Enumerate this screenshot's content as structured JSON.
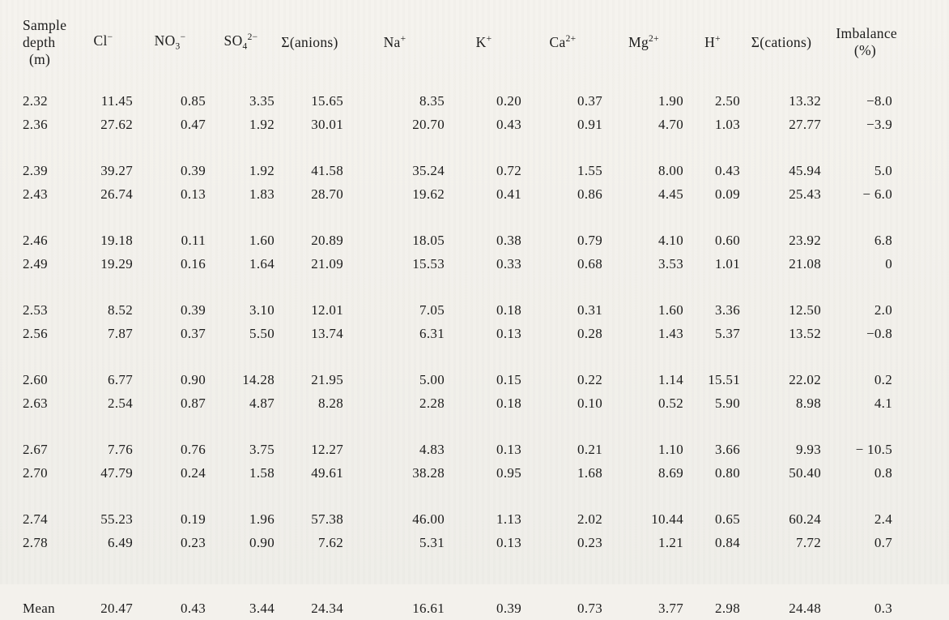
{
  "colors": {
    "paper": "#f3f1ec",
    "ink": "#1c1c1c"
  },
  "table": {
    "columns": [
      {
        "id": "sample-depth",
        "label_lines": [
          "Sample",
          "depth",
          "(m)"
        ]
      },
      {
        "id": "cl",
        "base": "Cl",
        "sup": "−"
      },
      {
        "id": "no3",
        "base": "NO",
        "sub": "3",
        "sup": "−"
      },
      {
        "id": "so4",
        "base": "SO",
        "sub": "4",
        "sup": "2−"
      },
      {
        "id": "sum-anions",
        "base": "Σ(anions)"
      },
      {
        "id": "na",
        "base": "Na",
        "sup": "+"
      },
      {
        "id": "k",
        "base": "K",
        "sup": "+"
      },
      {
        "id": "ca",
        "base": "Ca",
        "sup": "2+"
      },
      {
        "id": "mg",
        "base": "Mg",
        "sup": "2+"
      },
      {
        "id": "h",
        "base": "H",
        "sup": "+"
      },
      {
        "id": "sum-cations",
        "base": "Σ(cations)"
      },
      {
        "id": "imbalance",
        "base": "Imbalance",
        "line2": "(%)"
      }
    ],
    "groups": [
      [
        [
          "2.32",
          "11.45",
          "0.85",
          "3.35",
          "15.65",
          "8.35",
          "0.20",
          "0.37",
          "1.90",
          "2.50",
          "13.32",
          "−8.0"
        ],
        [
          "2.36",
          "27.62",
          "0.47",
          "1.92",
          "30.01",
          "20.70",
          "0.43",
          "0.91",
          "4.70",
          "1.03",
          "27.77",
          "−3.9"
        ]
      ],
      [
        [
          "2.39",
          "39.27",
          "0.39",
          "1.92",
          "41.58",
          "35.24",
          "0.72",
          "1.55",
          "8.00",
          "0.43",
          "45.94",
          "5.0"
        ],
        [
          "2.43",
          "26.74",
          "0.13",
          "1.83",
          "28.70",
          "19.62",
          "0.41",
          "0.86",
          "4.45",
          "0.09",
          "25.43",
          "− 6.0"
        ]
      ],
      [
        [
          "2.46",
          "19.18",
          "0.11",
          "1.60",
          "20.89",
          "18.05",
          "0.38",
          "0.79",
          "4.10",
          "0.60",
          "23.92",
          "6.8"
        ],
        [
          "2.49",
          "19.29",
          "0.16",
          "1.64",
          "21.09",
          "15.53",
          "0.33",
          "0.68",
          "3.53",
          "1.01",
          "21.08",
          "0"
        ]
      ],
      [
        [
          "2.53",
          "8.52",
          "0.39",
          "3.10",
          "12.01",
          "7.05",
          "0.18",
          "0.31",
          "1.60",
          "3.36",
          "12.50",
          "2.0"
        ],
        [
          "2.56",
          "7.87",
          "0.37",
          "5.50",
          "13.74",
          "6.31",
          "0.13",
          "0.28",
          "1.43",
          "5.37",
          "13.52",
          "−0.8"
        ]
      ],
      [
        [
          "2.60",
          "6.77",
          "0.90",
          "14.28",
          "21.95",
          "5.00",
          "0.15",
          "0.22",
          "1.14",
          "15.51",
          "22.02",
          "0.2"
        ],
        [
          "2.63",
          "2.54",
          "0.87",
          "4.87",
          "8.28",
          "2.28",
          "0.18",
          "0.10",
          "0.52",
          "5.90",
          "8.98",
          "4.1"
        ]
      ],
      [
        [
          "2.67",
          "7.76",
          "0.76",
          "3.75",
          "12.27",
          "4.83",
          "0.13",
          "0.21",
          "1.10",
          "3.66",
          "9.93",
          "− 10.5"
        ],
        [
          "2.70",
          "47.79",
          "0.24",
          "1.58",
          "49.61",
          "38.28",
          "0.95",
          "1.68",
          "8.69",
          "0.80",
          "50.40",
          "0.8"
        ]
      ],
      [
        [
          "2.74",
          "55.23",
          "0.19",
          "1.96",
          "57.38",
          "46.00",
          "1.13",
          "2.02",
          "10.44",
          "0.65",
          "60.24",
          "2.4"
        ],
        [
          "2.78",
          "6.49",
          "0.23",
          "0.90",
          "7.62",
          "5.31",
          "0.13",
          "0.23",
          "1.21",
          "0.84",
          "7.72",
          "0.7"
        ]
      ]
    ],
    "mean_row": [
      "Mean",
      "20.47",
      "0.43",
      "3.44",
      "24.34",
      "16.61",
      "0.39",
      "0.73",
      "3.77",
      "2.98",
      "24.48",
      "0.3"
    ]
  }
}
